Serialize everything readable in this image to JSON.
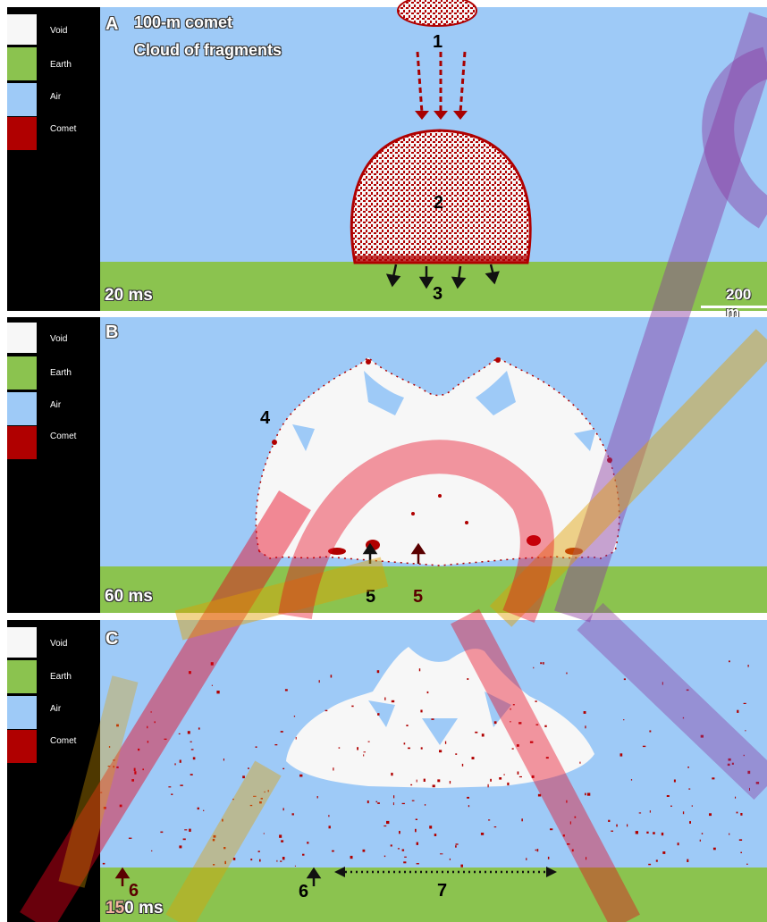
{
  "legend": [
    {
      "label": "Void",
      "color": "#f7f7f7"
    },
    {
      "label": "Earth",
      "color": "#8bc34f"
    },
    {
      "label": "Air",
      "color": "#9ecaf7"
    },
    {
      "label": "Comet",
      "color": "#b00000"
    }
  ],
  "colors": {
    "air": "#9ecaf7",
    "earth": "#8bc34f",
    "comet": "#b00000",
    "void": "#f7f7f7",
    "watermark_red": "#e8001a",
    "watermark_orange": "#e0a000",
    "watermark_purple": "#8a3aa0"
  },
  "panel_a": {
    "label": "A",
    "title_line1": "100-m comet",
    "title_line2": "Cloud of fragments",
    "time": "20 ms",
    "scale_label": "200 m",
    "markers": [
      "1",
      "2",
      "3"
    ]
  },
  "panel_b": {
    "label": "B",
    "time": "60 ms",
    "markers": [
      "4",
      "5",
      "5"
    ]
  },
  "panel_c": {
    "label": "C",
    "time_prefix": "15",
    "time_suffix": "0 ms",
    "markers": [
      "6",
      "6",
      "7"
    ]
  }
}
